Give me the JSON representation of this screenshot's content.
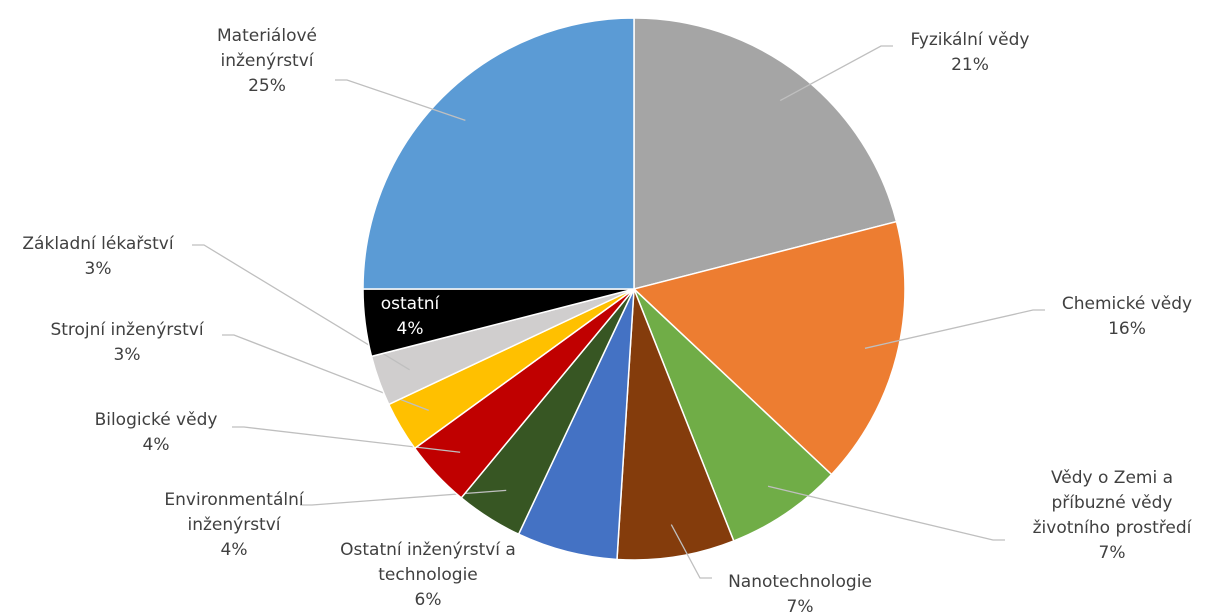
{
  "chart_data": {
    "type": "pie",
    "categories": [
      "Fyzikální vědy",
      "Chemické vědy",
      "Vědy o Zemi a příbuzné vědy životního prostředí",
      "Nanotechnologie",
      "Ostatní inženýrství a technologie",
      "Environmentální inženýrství",
      "Bilogické vědy",
      "Strojní inženýrství",
      "Základní lékařství",
      "ostatní",
      "Materiálové inženýrství"
    ],
    "values": [
      21,
      16,
      7,
      7,
      6,
      4,
      4,
      3,
      3,
      4,
      25
    ],
    "value_labels": [
      "21%",
      "16%",
      "7%",
      "7%",
      "6%",
      "4%",
      "4%",
      "3%",
      "3%",
      "4%",
      "25%"
    ],
    "colors": [
      "#a5a5a5",
      "#ed7d31",
      "#70ad47",
      "#843c0c",
      "#4472c4",
      "#375623",
      "#c00000",
      "#ffc000",
      "#d0cece",
      "#000000",
      "#5b9bd5"
    ]
  }
}
